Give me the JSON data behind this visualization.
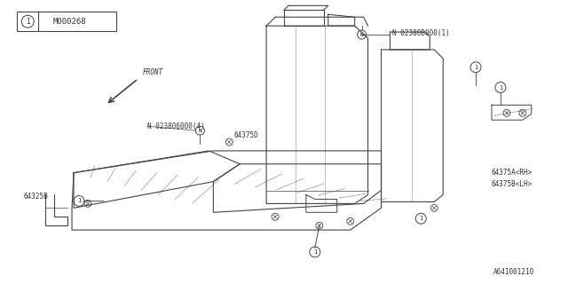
{
  "bg_color": "#ffffff",
  "line_color": "#444444",
  "text_color": "#333333",
  "title_text": "M000268",
  "bottom_text": "A641001210",
  "labels": {
    "n_bolt_cushion": "N 023806000(4)",
    "part_64375d": "64375D",
    "part_64325b": "64325B",
    "n_bolt_back": "N 02380B000(1)",
    "part_64375a": "64375A<RH>",
    "part_64375b": "64375B<LH>"
  },
  "front_label": "FRONT"
}
